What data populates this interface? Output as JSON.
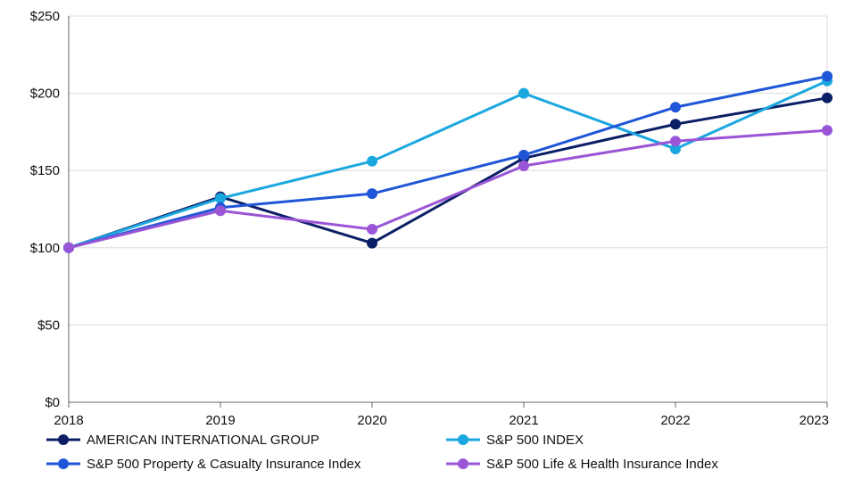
{
  "chart_data": {
    "type": "line",
    "title": "",
    "xlabel": "",
    "ylabel": "",
    "x": [
      "2018",
      "2019",
      "2020",
      "2021",
      "2022",
      "2023"
    ],
    "y_ticks": [
      "$0",
      "$50",
      "$100",
      "$150",
      "$200",
      "$250"
    ],
    "ylim": [
      0,
      250
    ],
    "grid": true,
    "legend_position": "bottom",
    "series": [
      {
        "name": "AMERICAN INTERNATIONAL GROUP",
        "color": "#0b1f66",
        "values": [
          100,
          133,
          103,
          158,
          180,
          197
        ]
      },
      {
        "name": "S&P 500 INDEX",
        "color": "#1aa7df",
        "values": [
          100,
          132,
          156,
          200,
          164,
          208
        ]
      },
      {
        "name": "S&P 500 Property & Casualty Insurance Index",
        "color": "#1f56d8",
        "values": [
          100,
          126,
          135,
          160,
          191,
          211
        ]
      },
      {
        "name": "S&P 500 Life & Health Insurance Index",
        "color": "#9a55d6",
        "values": [
          100,
          124,
          112,
          153,
          169,
          176
        ]
      }
    ]
  }
}
